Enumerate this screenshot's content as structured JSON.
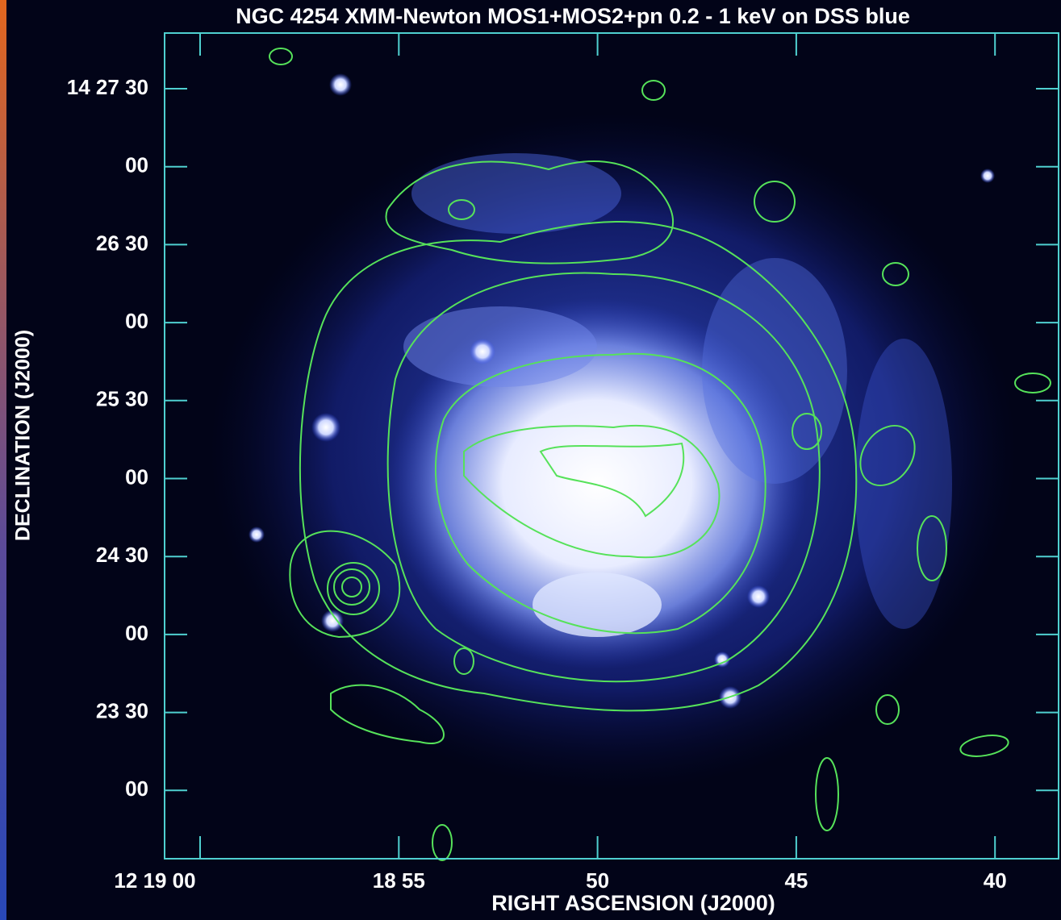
{
  "title": "NGC 4254 XMM-Newton MOS1+MOS2+pn 0.2 - 1 keV on DSS blue",
  "y_axis": {
    "label": "DECLINATION (J2000)",
    "ticks": [
      "14 27 30",
      "00",
      "26 30",
      "00",
      "25 30",
      "00",
      "24 30",
      "00",
      "23 30",
      "00"
    ]
  },
  "x_axis": {
    "label": "RIGHT ASCENSION (J2000)",
    "ticks": [
      "12 19 00",
      "18 55",
      "50",
      "45",
      "40"
    ]
  }
}
